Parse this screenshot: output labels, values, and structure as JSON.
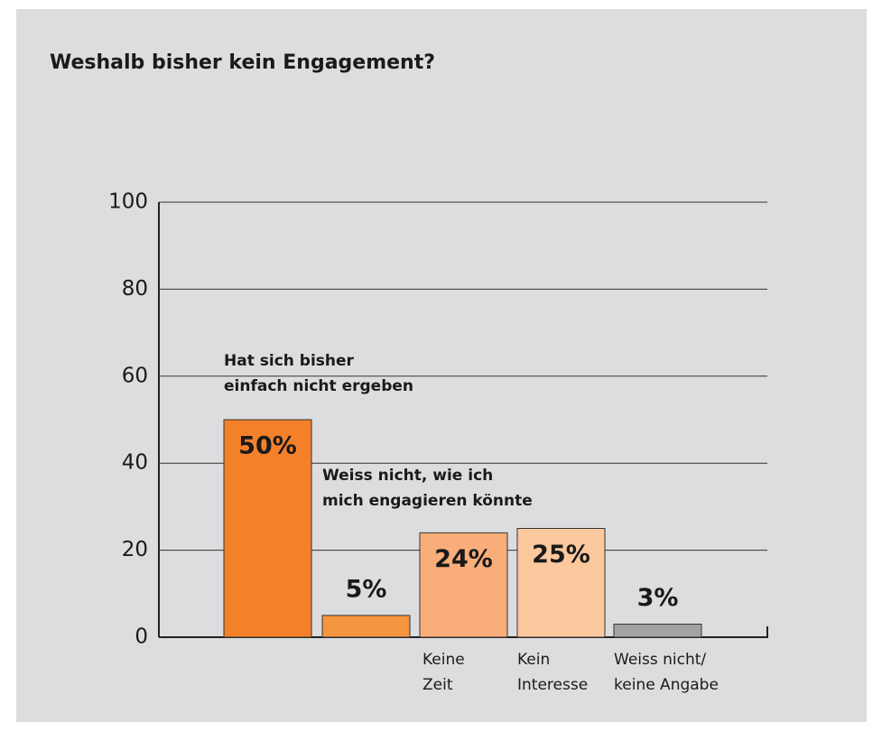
{
  "chart_data": {
    "type": "bar",
    "title": "Weshalb bisher kein Engagement?",
    "categories": [
      [
        "Hat sich bisher",
        "einfach nicht ergeben"
      ],
      [
        "Weiss nicht, wie ich",
        "mich engagieren könnte"
      ],
      [
        "Keine",
        "Zeit"
      ],
      [
        "Kein",
        "Interesse"
      ],
      [
        "Weiss nicht/",
        "keine Angabe"
      ]
    ],
    "values": [
      50,
      5,
      24,
      25,
      3
    ],
    "value_labels": [
      "50%",
      "5%",
      "24%",
      "25%",
      "3%"
    ],
    "colors": [
      "#f4812a",
      "#f6953f",
      "#f9ae79",
      "#fcc89e",
      "#a3a3a3"
    ],
    "ylim": [
      0,
      100
    ],
    "yticks": [
      0,
      20,
      40,
      60,
      80,
      100
    ],
    "grid": true
  }
}
